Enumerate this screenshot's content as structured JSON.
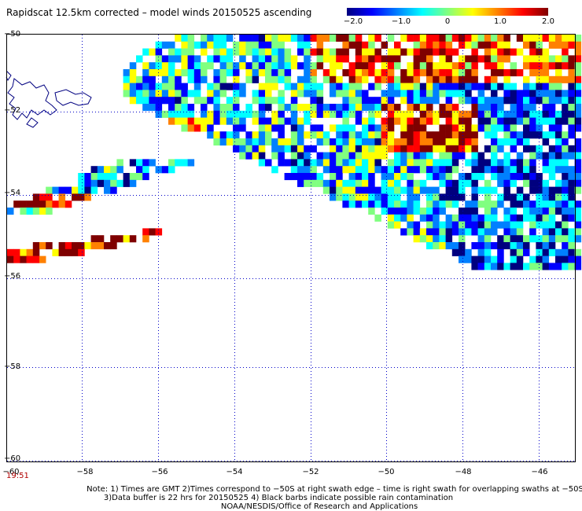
{
  "title": "Rapidscat 12.5km corrected – model winds 20150525 ascending",
  "colorbar": {
    "ticks": [
      "−2.0",
      "−1.0",
      "0",
      "1.0",
      "2.0"
    ],
    "range": [
      -2.0,
      2.0
    ],
    "colors": [
      "#00007f",
      "#0000ff",
      "#0080ff",
      "#00ffff",
      "#80ff80",
      "#ffff00",
      "#ff8000",
      "#ff0000",
      "#7f0000"
    ]
  },
  "axes": {
    "lat_labels": [
      "−50",
      "−52",
      "−54",
      "−56",
      "−58",
      "−60"
    ],
    "lon_labels": [
      "−60",
      "−58",
      "−56",
      "−54",
      "−52",
      "−50",
      "−48",
      "−46"
    ],
    "grid_color": "#0000c8"
  },
  "time_label": "19:51",
  "notes": [
    "Note: 1) Times are GMT 2)Times correspond to −50S at right swath edge – time is right swath for overlapping swaths at −50S",
    "3)Data buffer is 22 hrs for 20150525 4) Black barbs indicate possible rain contamination",
    "NOAA/NESDIS/Office of Research and Applications"
  ]
}
